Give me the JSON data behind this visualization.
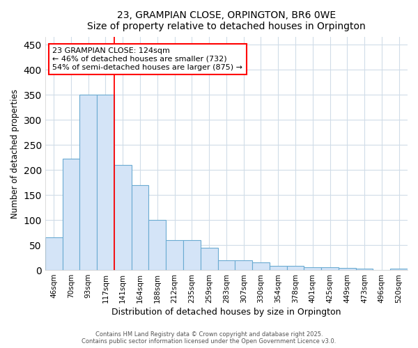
{
  "title": "23, GRAMPIAN CLOSE, ORPINGTON, BR6 0WE",
  "subtitle": "Size of property relative to detached houses in Orpington",
  "xlabel": "Distribution of detached houses by size in Orpington",
  "ylabel": "Number of detached properties",
  "categories": [
    "46sqm",
    "70sqm",
    "93sqm",
    "117sqm",
    "141sqm",
    "164sqm",
    "188sqm",
    "212sqm",
    "235sqm",
    "259sqm",
    "283sqm",
    "307sqm",
    "330sqm",
    "354sqm",
    "378sqm",
    "401sqm",
    "425sqm",
    "449sqm",
    "473sqm",
    "496sqm",
    "520sqm"
  ],
  "values": [
    65,
    222,
    350,
    350,
    210,
    170,
    100,
    60,
    60,
    44,
    20,
    19,
    15,
    8,
    8,
    6,
    5,
    4,
    3,
    0,
    3
  ],
  "bar_color": "#d4e4f7",
  "bar_edge_color": "#6aabd2",
  "red_line_index": 4,
  "annotation_text": "23 GRAMPIAN CLOSE: 124sqm\n← 46% of detached houses are smaller (732)\n54% of semi-detached houses are larger (875) →",
  "annotation_box_color": "white",
  "annotation_box_edge_color": "red",
  "ylim": [
    0,
    465
  ],
  "yticks": [
    0,
    50,
    100,
    150,
    200,
    250,
    300,
    350,
    400,
    450
  ],
  "background_color": "#ffffff",
  "grid_color": "#d0dce8",
  "footer_line1": "Contains HM Land Registry data © Crown copyright and database right 2025.",
  "footer_line2": "Contains public sector information licensed under the Open Government Licence v3.0."
}
